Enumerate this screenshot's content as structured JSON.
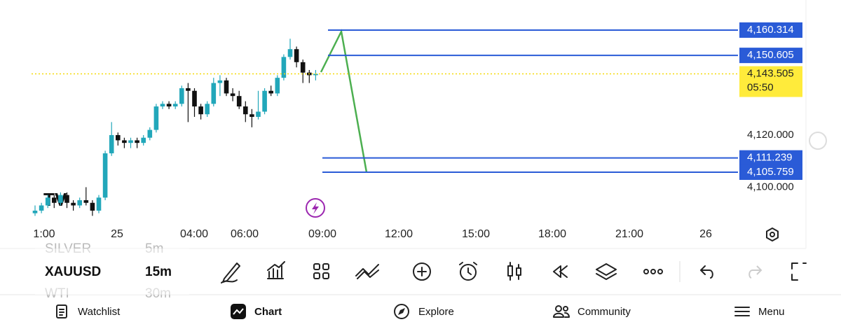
{
  "chart_data": {
    "type": "candlestick",
    "candles": [
      [
        4090,
        4093,
        4089,
        4091
      ],
      [
        4091,
        4094,
        4090,
        4093
      ],
      [
        4093,
        4097,
        4092,
        4096
      ],
      [
        4096,
        4097,
        4092,
        4094
      ],
      [
        4094,
        4098,
        4093,
        4097
      ],
      [
        4097,
        4098,
        4092,
        4094
      ],
      [
        4094,
        4095,
        4091,
        4093
      ],
      [
        4093,
        4096,
        4092,
        4095
      ],
      [
        4095,
        4100,
        4093,
        4094
      ],
      [
        4094,
        4095,
        4089,
        4091
      ],
      [
        4091,
        4097,
        4090,
        4096
      ],
      [
        4096,
        4114,
        4095,
        4113
      ],
      [
        4113,
        4125,
        4112,
        4120
      ],
      [
        4120,
        4121,
        4116,
        4118
      ],
      [
        4118,
        4119,
        4115,
        4117
      ],
      [
        4117,
        4119,
        4115,
        4118
      ],
      [
        4118,
        4119,
        4115,
        4117
      ],
      [
        4117,
        4120,
        4116,
        4119
      ],
      [
        4119,
        4123,
        4118,
        4122
      ],
      [
        4122,
        4132,
        4121,
        4131
      ],
      [
        4131,
        4133,
        4130,
        4132
      ],
      [
        4132,
        4133,
        4130,
        4131
      ],
      [
        4131,
        4133,
        4130,
        4132
      ],
      [
        4132,
        4139,
        4131,
        4138
      ],
      [
        4138,
        4140,
        4125,
        4137
      ],
      [
        4137,
        4138,
        4127,
        4131
      ],
      [
        4131,
        4132,
        4126,
        4128
      ],
      [
        4128,
        4133,
        4127,
        4132
      ],
      [
        4132,
        4142,
        4131,
        4140
      ],
      [
        4140,
        4143,
        4135,
        4141
      ],
      [
        4141,
        4142,
        4135,
        4136
      ],
      [
        4136,
        4138,
        4133,
        4135
      ],
      [
        4135,
        4137,
        4130,
        4131
      ],
      [
        4131,
        4133,
        4125,
        4128
      ],
      [
        4128,
        4130,
        4123,
        4127
      ],
      [
        4127,
        4137,
        4126,
        4129
      ],
      [
        4129,
        4138,
        4128,
        4137
      ],
      [
        4137,
        4139,
        4135,
        4136
      ],
      [
        4136,
        4143,
        4135,
        4142
      ],
      [
        4142,
        4151,
        4141,
        4150
      ],
      [
        4150,
        4157,
        4149,
        4153
      ],
      [
        4153,
        4154,
        4146,
        4148
      ],
      [
        4148,
        4149,
        4140,
        4144
      ],
      [
        4144,
        4145,
        4140,
        4143
      ],
      [
        4143,
        4145,
        4141,
        4143.5
      ]
    ],
    "up_color": "#22a7ba",
    "down_color": "#111111",
    "ylim": [
      4085.87,
      4171.87
    ],
    "yticks": [
      {
        "value": 4120,
        "label": "4,120.000"
      },
      {
        "value": 4100,
        "label": "4,100.000"
      }
    ],
    "levels": [
      {
        "value": 4160.314,
        "label": "4,160.314"
      },
      {
        "value": 4150.605,
        "label": "4,150.605"
      },
      {
        "value": 4111.239,
        "label": "4,111.239"
      },
      {
        "value": 4105.759,
        "label": "4,105.759"
      }
    ],
    "level_color": "#2a5bd7",
    "last_price": {
      "value": 4143.505,
      "label": "4,143.505"
    },
    "countdown": "05:50",
    "time_labels": [
      "1:00",
      "25",
      "04:00",
      "06:00",
      "09:00",
      "12:00",
      "15:00",
      "18:00",
      "21:00",
      "26"
    ]
  },
  "symbols": [
    {
      "name": "SILVER",
      "interval": "5m"
    },
    {
      "name": "XAUUSD",
      "interval": "15m"
    },
    {
      "name": "WTI",
      "interval": "30m"
    }
  ],
  "nav": [
    "Watchlist",
    "Chart",
    "Explore",
    "Community",
    "Menu"
  ]
}
